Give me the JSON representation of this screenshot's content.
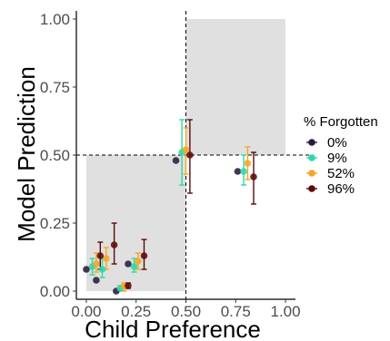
{
  "chart_data": {
    "type": "scatter",
    "xlabel": "Child Preference",
    "ylabel": "Model Prediction",
    "xlim": [
      -0.05,
      1.05
    ],
    "ylim": [
      -0.03,
      1.03
    ],
    "x_ticks": [
      "0.00",
      "0.25",
      "0.50",
      "0.75",
      "1.00"
    ],
    "y_ticks": [
      "0.00",
      "0.25",
      "0.50",
      "0.75",
      "1.00"
    ],
    "reference_lines": {
      "x": 0.5,
      "y": 0.5
    },
    "shaded_regions": [
      {
        "x": [
          0.0,
          0.5
        ],
        "y": [
          0.0,
          0.5
        ]
      },
      {
        "x": [
          0.5,
          1.0
        ],
        "y": [
          0.5,
          1.0
        ]
      }
    ],
    "legend": {
      "title": "% Forgotten",
      "position": "right"
    },
    "series": [
      {
        "name": "0%",
        "color": "#2b1a3d",
        "points": [
          {
            "x": 0.0,
            "y": 0.08
          },
          {
            "x": 0.05,
            "y": 0.04
          },
          {
            "x": 0.15,
            "y": 0.0
          },
          {
            "x": 0.21,
            "y": 0.1
          },
          {
            "x": 0.45,
            "y": 0.48
          },
          {
            "x": 0.76,
            "y": 0.44
          }
        ]
      },
      {
        "name": "9%",
        "color": "#2ed8a8",
        "points": [
          {
            "x": 0.03,
            "y": 0.09,
            "lo": 0.06,
            "hi": 0.12
          },
          {
            "x": 0.08,
            "y": 0.08,
            "lo": 0.05,
            "hi": 0.12
          },
          {
            "x": 0.17,
            "y": 0.01,
            "lo": 0.0,
            "hi": 0.02
          },
          {
            "x": 0.24,
            "y": 0.09,
            "lo": 0.07,
            "hi": 0.12
          },
          {
            "x": 0.48,
            "y": 0.51,
            "lo": 0.39,
            "hi": 0.63
          },
          {
            "x": 0.79,
            "y": 0.44,
            "lo": 0.39,
            "hi": 0.5
          }
        ]
      },
      {
        "name": "52%",
        "color": "#f5a623",
        "points": [
          {
            "x": 0.05,
            "y": 0.1,
            "lo": 0.07,
            "hi": 0.14
          },
          {
            "x": 0.1,
            "y": 0.12,
            "lo": 0.08,
            "hi": 0.16
          },
          {
            "x": 0.19,
            "y": 0.02,
            "lo": 0.0,
            "hi": 0.03
          },
          {
            "x": 0.26,
            "y": 0.11,
            "lo": 0.08,
            "hi": 0.14
          },
          {
            "x": 0.5,
            "y": 0.52,
            "lo": 0.43,
            "hi": 0.6
          },
          {
            "x": 0.81,
            "y": 0.47,
            "lo": 0.41,
            "hi": 0.53
          }
        ]
      },
      {
        "name": "96%",
        "color": "#5c0a0a",
        "points": [
          {
            "x": 0.07,
            "y": 0.13,
            "lo": 0.08,
            "hi": 0.18
          },
          {
            "x": 0.14,
            "y": 0.17,
            "lo": 0.1,
            "hi": 0.25
          },
          {
            "x": 0.21,
            "y": 0.02,
            "lo": 0.01,
            "hi": 0.03
          },
          {
            "x": 0.29,
            "y": 0.13,
            "lo": 0.08,
            "hi": 0.19
          },
          {
            "x": 0.52,
            "y": 0.5,
            "lo": 0.36,
            "hi": 0.63
          },
          {
            "x": 0.84,
            "y": 0.42,
            "lo": 0.32,
            "hi": 0.51
          }
        ]
      }
    ]
  }
}
